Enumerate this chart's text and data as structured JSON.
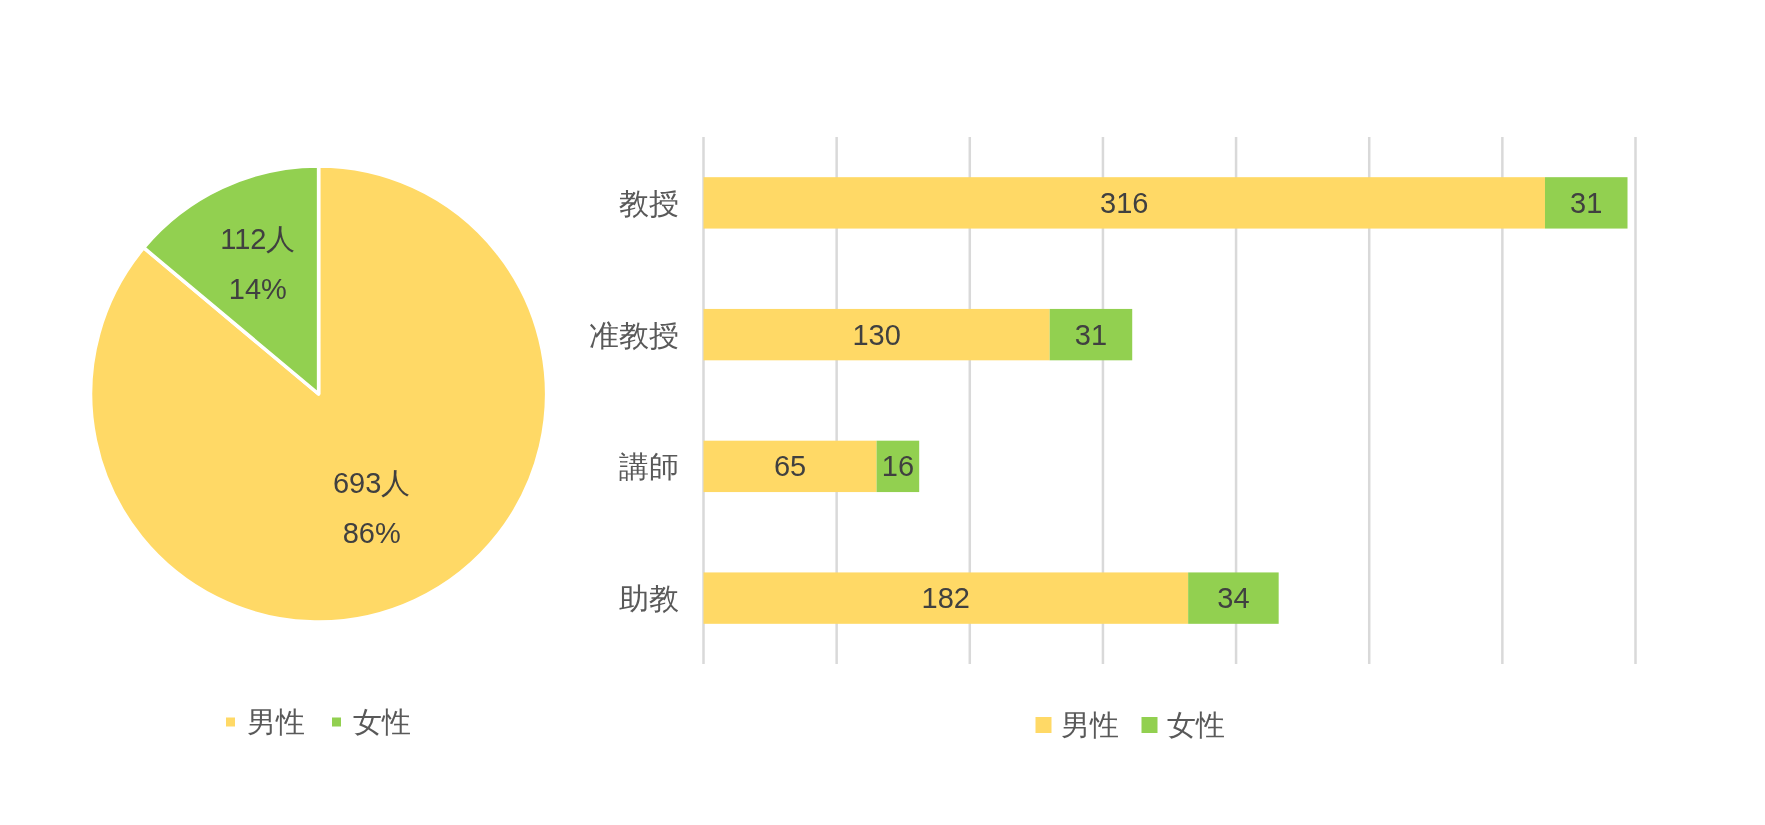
{
  "chart_data": [
    {
      "type": "pie",
      "categories": [
        "男性",
        "女性"
      ],
      "values": [
        693,
        112
      ],
      "colors": [
        "#FFD966",
        "#92D050"
      ],
      "value_labels": [
        "693人\n86%",
        "112人\n14%"
      ],
      "legend": "bottom"
    },
    {
      "type": "bar",
      "orientation": "horizontal",
      "stacked": true,
      "categories": [
        "教授",
        "准教授",
        "講師",
        "助教"
      ],
      "series": [
        {
          "name": "男性",
          "color": "#FFD966",
          "values": [
            316,
            130,
            65,
            182
          ]
        },
        {
          "name": "女性",
          "color": "#92D050",
          "values": [
            31,
            31,
            16,
            34
          ]
        }
      ],
      "xlim": [
        0,
        350
      ],
      "xticks": [
        {
          "value": 0,
          "label": null
        },
        {
          "value": 50,
          "label": null
        },
        {
          "value": 100,
          "label": null
        },
        {
          "value": 150,
          "label": null
        },
        {
          "value": 200,
          "label": null
        },
        {
          "value": 250,
          "label": null
        },
        {
          "value": 300,
          "label": null
        },
        {
          "value": 350,
          "label": null
        }
      ],
      "grid": "x",
      "tick_labels": "y",
      "data_labels": true,
      "legend": "bottom"
    }
  ]
}
